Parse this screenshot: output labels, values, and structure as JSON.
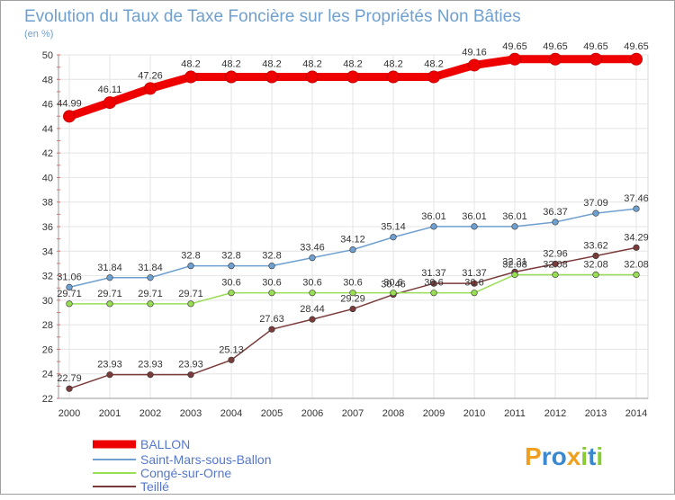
{
  "chart_data": {
    "type": "line",
    "title": "Evolution du Taux de Taxe Foncière sur les Propriétés Non Bâties",
    "ylabel": "(en %)",
    "xlabel": "",
    "ylim": [
      22,
      50
    ],
    "yticks": [
      22,
      24,
      26,
      28,
      30,
      32,
      34,
      36,
      38,
      40,
      42,
      44,
      46,
      48,
      50
    ],
    "x": [
      "2000",
      "2001",
      "2002",
      "2003",
      "2004",
      "2005",
      "2006",
      "2007",
      "2008",
      "2009",
      "2010",
      "2011",
      "2012",
      "2013",
      "2014"
    ],
    "grid": true,
    "legend_position": "bottom-left",
    "series": [
      {
        "name": "BALLON",
        "color": "#ee0000",
        "values": [
          44.99,
          46.11,
          47.26,
          48.2,
          48.2,
          48.2,
          48.2,
          48.2,
          48.2,
          48.2,
          49.16,
          49.65,
          49.65,
          49.65,
          49.65
        ],
        "labels": [
          "44.99",
          "46.11",
          "47.26",
          "48.2",
          "48.2",
          "48.2",
          "48.2",
          "48.2",
          "48.2",
          "48.2",
          "49.16",
          "49.65",
          "49.65",
          "49.65",
          "49.65"
        ]
      },
      {
        "name": "Saint-Mars-sous-Ballon",
        "color": "#6fa0d0",
        "values": [
          31.06,
          31.84,
          31.84,
          32.8,
          32.8,
          32.8,
          33.46,
          34.12,
          35.14,
          36.01,
          36.01,
          36.01,
          36.37,
          37.09,
          37.46
        ],
        "labels": [
          "31.06",
          "31.84",
          "31.84",
          "32.8",
          "32.8",
          "32.8",
          "33.46",
          "34.12",
          "35.14",
          "36.01",
          "36.01",
          "36.01",
          "36.37",
          "37.09",
          "37.46"
        ]
      },
      {
        "name": "Congé-sur-Orne",
        "color": "#99dd55",
        "values": [
          29.71,
          29.71,
          29.71,
          29.71,
          30.6,
          30.6,
          30.6,
          30.6,
          30.6,
          30.6,
          30.6,
          32.08,
          32.08,
          32.08,
          32.08
        ],
        "labels": [
          "29.71",
          "29.71",
          "29.71",
          "29.71",
          "30.6",
          "30.6",
          "30.6",
          "30.6",
          "30.6",
          "30.6",
          "30.6",
          "32.08",
          "32.08",
          "32.08",
          "32.08"
        ]
      },
      {
        "name": "Teillé",
        "color": "#7a3b3b",
        "values": [
          22.79,
          23.93,
          23.93,
          23.93,
          25.13,
          27.63,
          28.44,
          29.29,
          30.46,
          31.37,
          31.37,
          32.31,
          32.96,
          33.62,
          34.29
        ],
        "labels": [
          "22.79",
          "23.93",
          "23.93",
          "23.93",
          "25.13",
          "27.63",
          "28.44",
          "29.29",
          "30.46",
          "31.37",
          "31.37",
          "32.31",
          "32.96",
          "33.62",
          "34.29"
        ]
      }
    ]
  },
  "logo": {
    "text": "Proxiti"
  }
}
